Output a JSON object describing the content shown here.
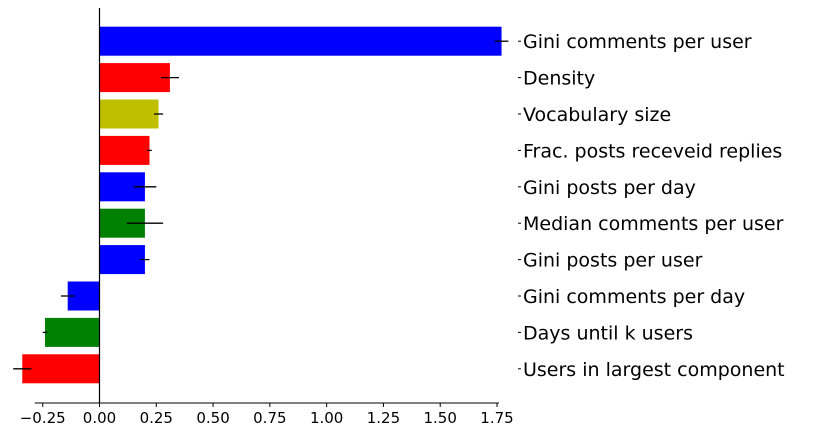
{
  "chart_data": {
    "type": "bar",
    "orientation": "horizontal",
    "categories": [
      "Gini comments per user",
      "Density",
      "Vocabulary size",
      "Frac. posts receveid replies",
      "Gini posts per day",
      "Median comments per user",
      "Gini posts per user",
      "Gini comments per day",
      "Days until k users",
      "Users in largest component"
    ],
    "values": [
      1.77,
      0.31,
      0.26,
      0.22,
      0.2,
      0.2,
      0.2,
      -0.14,
      -0.24,
      -0.34
    ],
    "errors": [
      0.03,
      0.04,
      0.02,
      0.01,
      0.05,
      0.08,
      0.02,
      0.03,
      0.01,
      0.04
    ],
    "colors": [
      "#0000ff",
      "#ff0000",
      "#bfbf00",
      "#ff0000",
      "#0000ff",
      "#008000",
      "#0000ff",
      "#0000ff",
      "#008000",
      "#ff0000"
    ],
    "xticks": [
      "−0.25",
      "0.00",
      "0.25",
      "0.50",
      "0.75",
      "1.00",
      "1.25",
      "1.50",
      "1.75"
    ],
    "xtick_values": [
      -0.25,
      0,
      0.25,
      0.5,
      0.75,
      1.0,
      1.25,
      1.5,
      1.75
    ],
    "xlim": [
      -0.36,
      1.78
    ],
    "title": "",
    "xlabel": "",
    "ylabel": "",
    "grid": false,
    "legend": "none",
    "category_labels_side": "right"
  }
}
